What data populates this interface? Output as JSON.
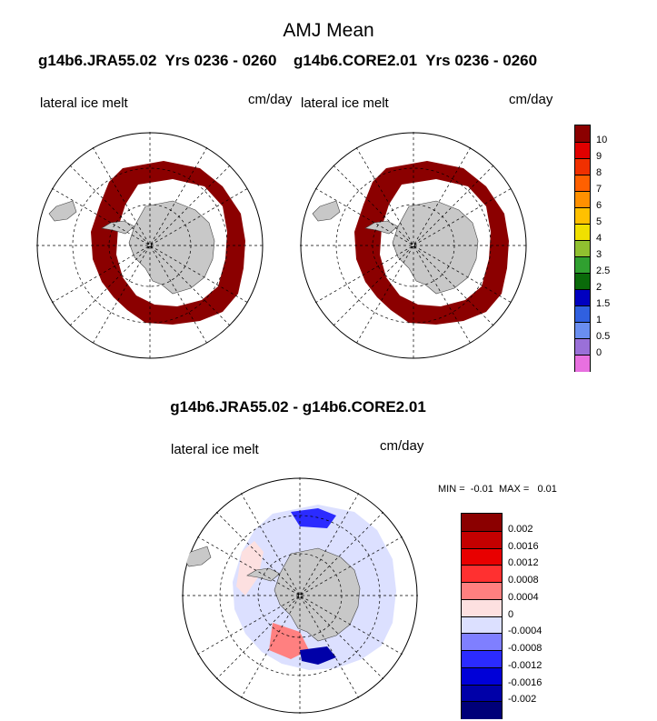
{
  "title": "AMJ Mean",
  "panels": {
    "left": {
      "case": "g14b6.JRA55.02",
      "years": "Yrs 0236 - 0260",
      "variable": "lateral ice melt",
      "units": "cm/day"
    },
    "right": {
      "case": "g14b6.CORE2.01",
      "years": "Yrs 0236 - 0260",
      "variable": "lateral ice melt",
      "units": "cm/day"
    },
    "diff": {
      "title": "g14b6.JRA55.02 - g14b6.CORE2.01",
      "variable": "lateral ice melt",
      "units": "cm/day",
      "min_label": "MIN =",
      "min_value": "-0.01",
      "max_label": "MAX =",
      "max_value": "0.01"
    }
  },
  "colorbar_main": {
    "labels": [
      "10",
      "9",
      "8",
      "7",
      "6",
      "5",
      "4",
      "3",
      "2.5",
      "2",
      "1.5",
      "1",
      "0.5",
      "0"
    ],
    "colors": [
      "#8b0000",
      "#e00000",
      "#f03000",
      "#ff6000",
      "#ff9000",
      "#ffc000",
      "#f0e000",
      "#90c030",
      "#30a030",
      "#0a6a0a",
      "#0000c0",
      "#3060e0",
      "#6a8ef0",
      "#9a70d8",
      "#e870e0"
    ]
  },
  "colorbar_diff": {
    "labels": [
      "0.002",
      "0.0016",
      "0.0012",
      "0.0008",
      "0.0004",
      "0",
      "-0.0004",
      "-0.0008",
      "-0.0012",
      "-0.0016",
      "-0.002"
    ],
    "colors": [
      "#8b0000",
      "#c40000",
      "#e80000",
      "#ff3030",
      "#ff8080",
      "#fde0e0",
      "#dce0ff",
      "#7f7fff",
      "#2b2bff",
      "#0000d8",
      "#0000a8",
      "#000078"
    ]
  },
  "map_colors": {
    "land": "#c8c8c8",
    "melt_high": "#8b0000",
    "diff_pos": "#ff8080",
    "diff_neg": "#4a4aff"
  }
}
